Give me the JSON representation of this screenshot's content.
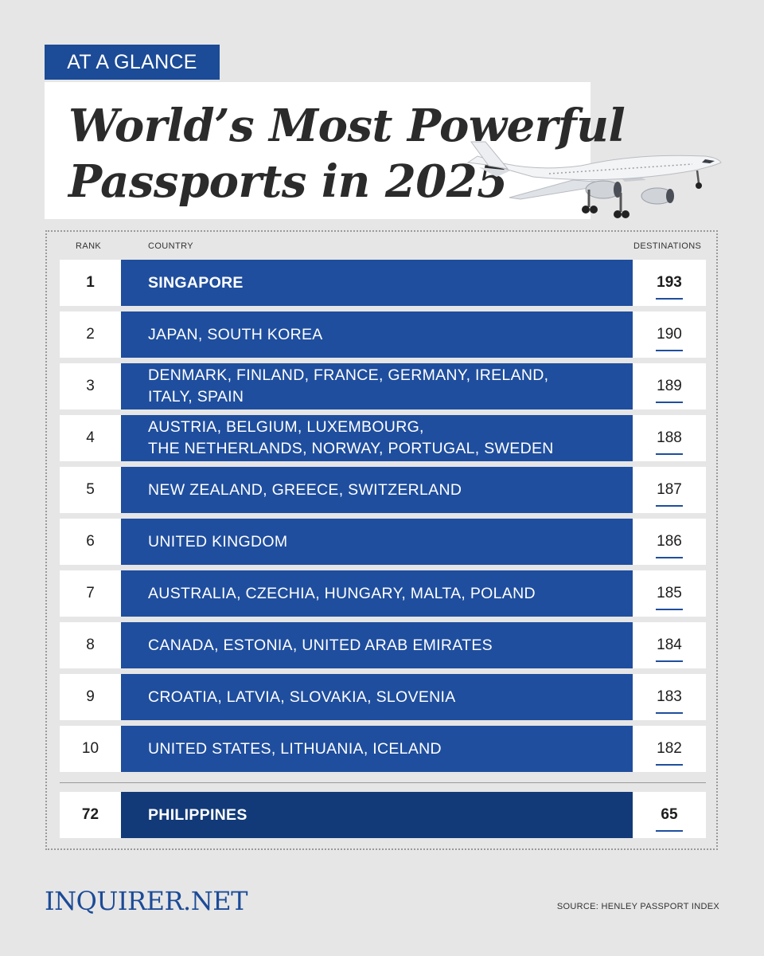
{
  "header": {
    "tag": "AT A GLANCE",
    "title_line1": "World’s Most Powerful",
    "title_line2": "Passports in 2025"
  },
  "table": {
    "columns": {
      "rank": "RANK",
      "country": "COUNTRY",
      "destinations": "DESTINATIONS"
    },
    "rows": [
      {
        "rank": "1",
        "country": "SINGAPORE",
        "destinations": "193"
      },
      {
        "rank": "2",
        "country": "JAPAN, SOUTH KOREA",
        "destinations": "190"
      },
      {
        "rank": "3",
        "country_line1": "DENMARK, FINLAND, FRANCE, GERMANY, IRELAND,",
        "country_line2": "ITALY, SPAIN",
        "destinations": "189"
      },
      {
        "rank": "4",
        "country_line1": "AUSTRIA, BELGIUM, LUXEMBOURG,",
        "country_line2": "THE NETHERLANDS, NORWAY, PORTUGAL, SWEDEN",
        "destinations": "188"
      },
      {
        "rank": "5",
        "country": "NEW ZEALAND, GREECE, SWITZERLAND",
        "destinations": "187"
      },
      {
        "rank": "6",
        "country": "UNITED KINGDOM",
        "destinations": "186"
      },
      {
        "rank": "7",
        "country": "AUSTRALIA, CZECHIA, HUNGARY, MALTA, POLAND",
        "destinations": "185"
      },
      {
        "rank": "8",
        "country": "CANADA, ESTONIA, UNITED ARAB EMIRATES",
        "destinations": "184"
      },
      {
        "rank": "9",
        "country": "CROATIA, LATVIA, SLOVAKIA, SLOVENIA",
        "destinations": "183"
      },
      {
        "rank": "10",
        "country": "UNITED STATES, LITHUANIA, ICELAND",
        "destinations": "182"
      }
    ],
    "highlight": {
      "rank": "72",
      "country": "PHILIPPINES",
      "destinations": "65"
    }
  },
  "footer": {
    "logo": "INQUIRER.NET",
    "source": "SOURCE: HENLEY PASSPORT INDEX"
  },
  "colors": {
    "accent": "#1f4e9e",
    "accent_dark": "#123a78",
    "background": "#e6e6e6"
  },
  "icons": {
    "plane": "airplane-icon"
  }
}
